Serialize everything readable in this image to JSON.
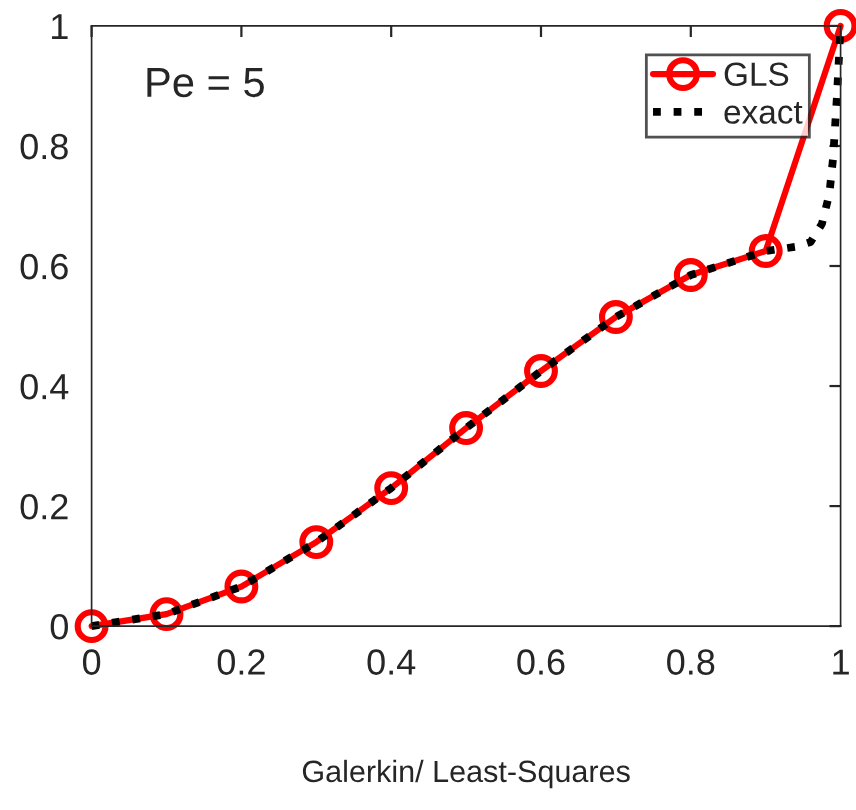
{
  "chart_data": {
    "type": "line",
    "xlabel": "Galerkin/ Least-Squares",
    "annotations": [
      "Pe = 5"
    ],
    "xlim": [
      0,
      1
    ],
    "ylim": [
      0,
      1
    ],
    "xticks": [
      0,
      0.2,
      0.4,
      0.6,
      0.8,
      1
    ],
    "yticks": [
      0,
      0.2,
      0.4,
      0.6,
      0.8,
      1
    ],
    "grid": false,
    "legend": "top right",
    "series": [
      {
        "name": "GLS",
        "color": "#ff0000",
        "marker": "circle",
        "line_style": "solid",
        "x": [
          0,
          0.1,
          0.2,
          0.3,
          0.4,
          0.5,
          0.6,
          0.7,
          0.8,
          0.9,
          1
        ],
        "values": [
          0,
          0.02,
          0.066,
          0.14,
          0.23,
          0.33,
          0.425,
          0.515,
          0.585,
          0.625,
          1
        ]
      },
      {
        "name": "exact",
        "color": "#000000",
        "marker": "none",
        "line_style": "dotted",
        "x": [
          0,
          0.1,
          0.2,
          0.3,
          0.4,
          0.5,
          0.6,
          0.7,
          0.8,
          0.9,
          0.94,
          0.96,
          0.975,
          0.985,
          0.99,
          0.995,
          1
        ],
        "values": [
          0,
          0.02,
          0.066,
          0.14,
          0.23,
          0.33,
          0.425,
          0.515,
          0.585,
          0.625,
          0.632,
          0.64,
          0.67,
          0.72,
          0.78,
          0.88,
          1
        ]
      }
    ]
  }
}
